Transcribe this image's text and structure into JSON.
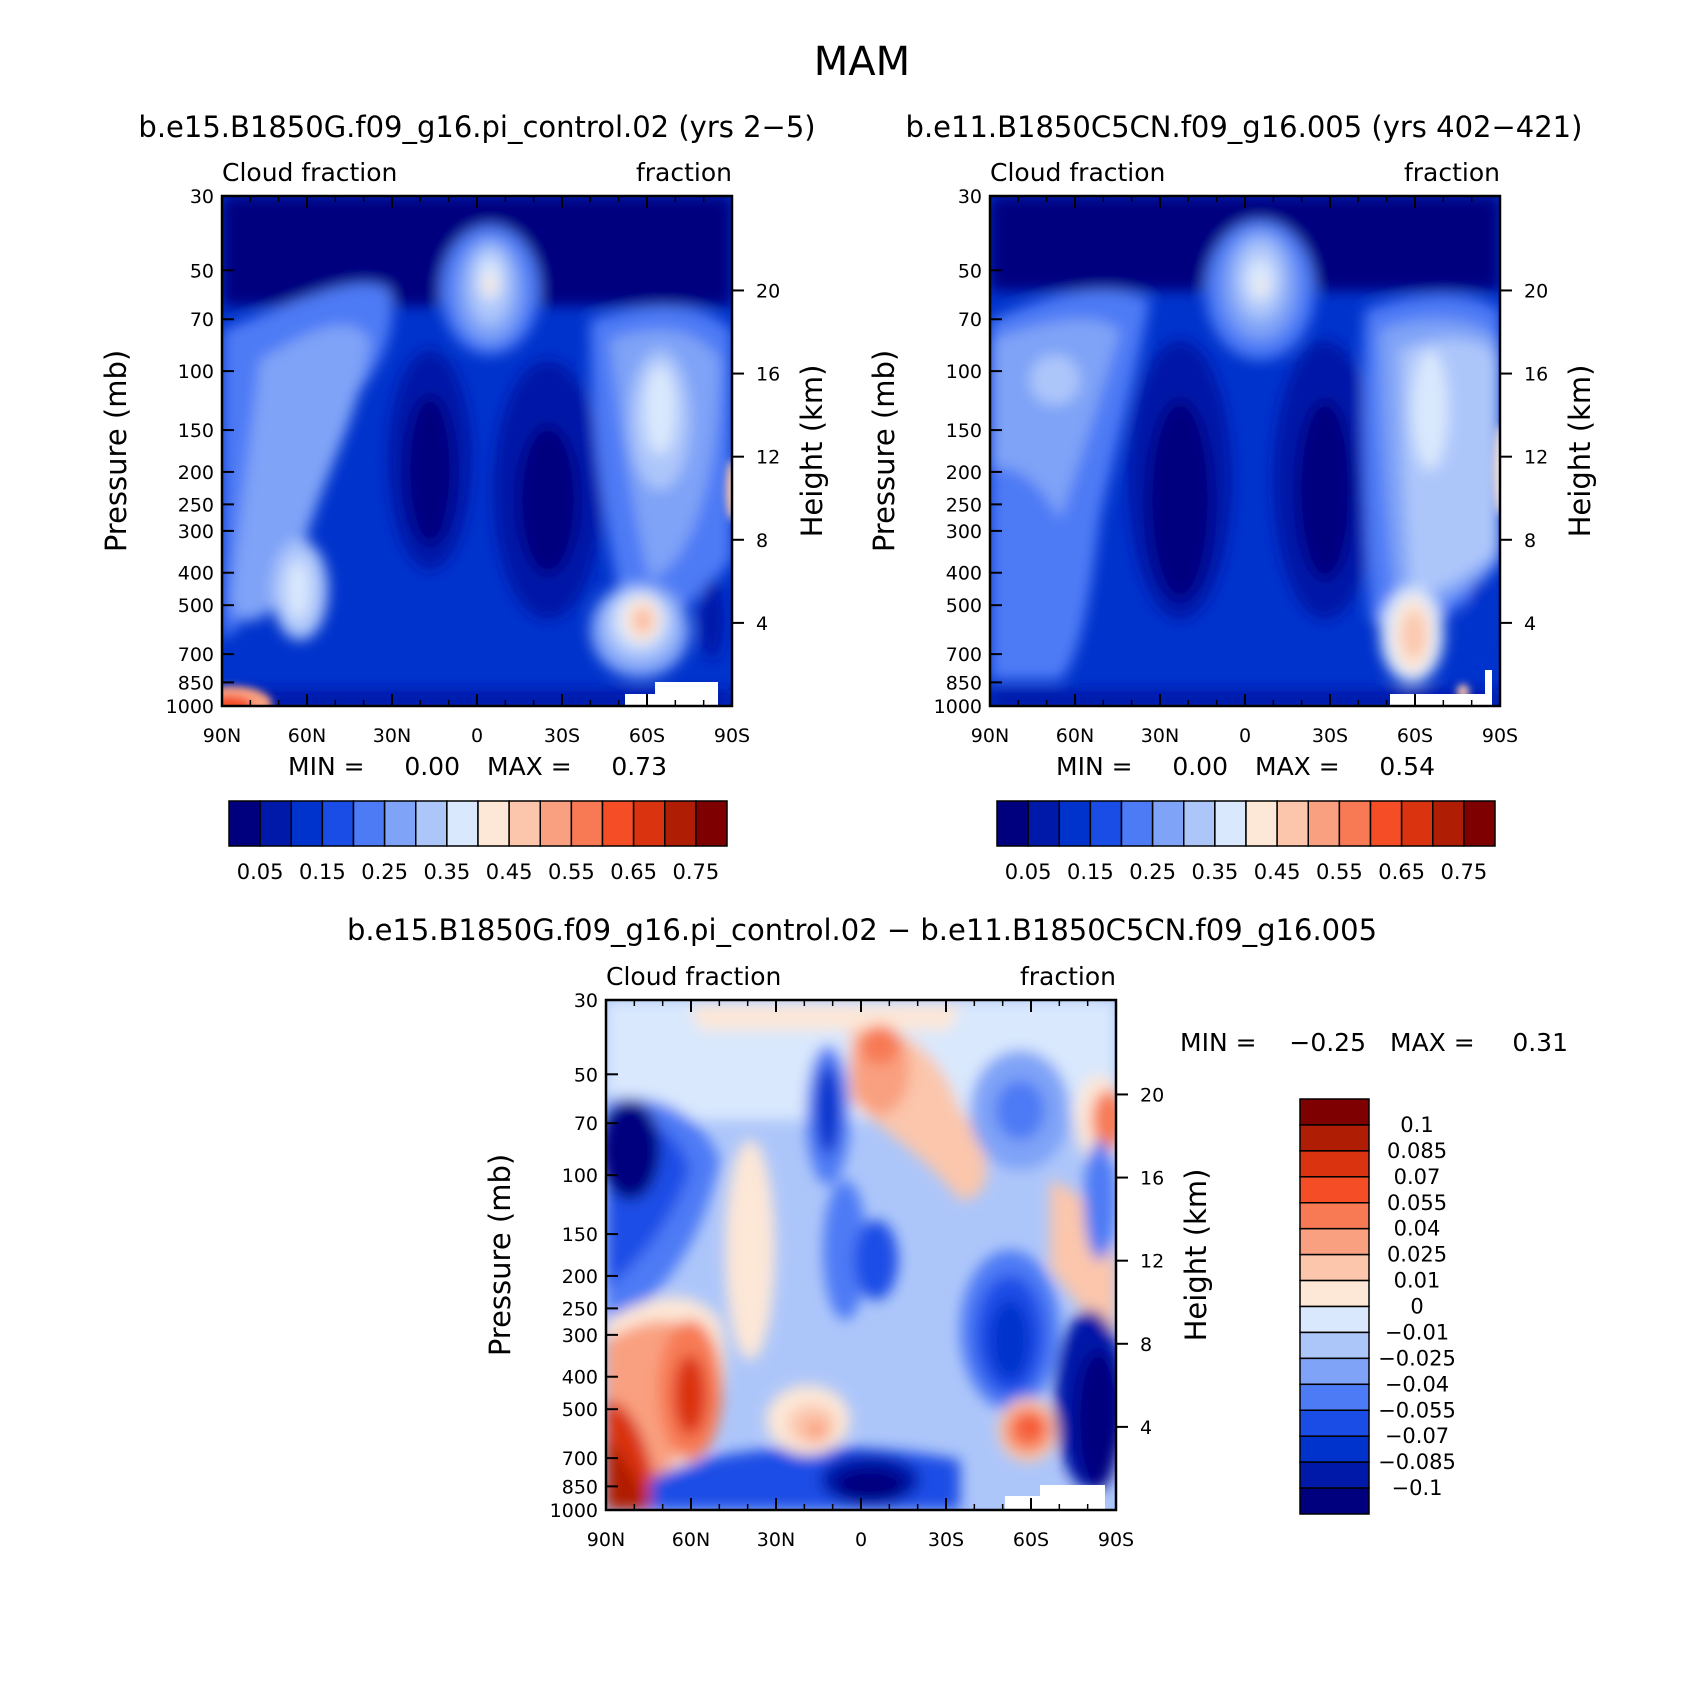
{
  "figure": {
    "title": "MAM",
    "diff_title": "b.e15.B1850G.f09_g16.pi_control.02 − b.e11.B1850C5CN.f09_g16.005"
  },
  "common": {
    "left_label": "Cloud fraction",
    "right_label": "fraction",
    "y_title": "Pressure (mb)",
    "y2_title": "Height (km)",
    "x_ticks": [
      "90N",
      "60N",
      "30N",
      "0",
      "30S",
      "60S",
      "90S"
    ],
    "p_ticks": [
      "30",
      "50",
      "70",
      "100",
      "150",
      "200",
      "250",
      "300",
      "400",
      "500",
      "700",
      "850",
      "1000"
    ],
    "h_ticks": [
      "20",
      "16",
      "12",
      "8",
      "4"
    ],
    "min_label": "MIN =",
    "max_label": "MAX ="
  },
  "colorbars": {
    "main": {
      "colors": [
        "#00007f",
        "#0019a8",
        "#0033cc",
        "#1a4de6",
        "#4d7af5",
        "#7fa3f7",
        "#adc6fa",
        "#d9e8fd",
        "#fde7d7",
        "#fbc6ac",
        "#f9a080",
        "#f77a54",
        "#f54d25",
        "#da3310",
        "#b01d05",
        "#7f0000"
      ],
      "labels": [
        "0.05",
        "0.15",
        "0.25",
        "0.35",
        "0.45",
        "0.55",
        "0.65",
        "0.75"
      ]
    },
    "diff": {
      "colors": [
        "#00007f",
        "#0019a8",
        "#0033cc",
        "#1a4de6",
        "#4d7af5",
        "#7fa3f7",
        "#adc6fa",
        "#d9e8fd",
        "#fde7d7",
        "#fbc6ac",
        "#f9a080",
        "#f77a54",
        "#f54d25",
        "#da3310",
        "#b01d05",
        "#7f0000"
      ],
      "labels": [
        "0.1",
        "0.085",
        "0.07",
        "0.055",
        "0.04",
        "0.025",
        "0.01",
        "0",
        "−0.01",
        "−0.025",
        "−0.04",
        "−0.055",
        "−0.07",
        "−0.085",
        "−0.1"
      ]
    }
  },
  "chart_data": [
    {
      "type": "heatmap",
      "title": "b.e15.B1850G.f09_g16.pi_control.02 (yrs 2−5)",
      "variable": "Cloud fraction",
      "units": "fraction",
      "xlabel": "",
      "ylabel": "Pressure (mb)",
      "y2label": "Height (km)",
      "x_range": [
        "90N",
        "90S"
      ],
      "y_range": [
        30,
        1000
      ],
      "min": "0.00",
      "max": "0.73"
    },
    {
      "type": "heatmap",
      "title": "b.e11.B1850C5CN.f09_g16.005 (yrs 402−421)",
      "variable": "Cloud fraction",
      "units": "fraction",
      "xlabel": "",
      "ylabel": "Pressure (mb)",
      "y2label": "Height (km)",
      "x_range": [
        "90N",
        "90S"
      ],
      "y_range": [
        30,
        1000
      ],
      "min": "0.00",
      "max": "0.54"
    },
    {
      "type": "heatmap",
      "title": "b.e15.B1850G.f09_g16.pi_control.02 − b.e11.B1850C5CN.f09_g16.005",
      "variable": "Cloud fraction",
      "units": "fraction",
      "xlabel": "",
      "ylabel": "Pressure (mb)",
      "y2label": "Height (km)",
      "x_range": [
        "90N",
        "90S"
      ],
      "y_range": [
        30,
        1000
      ],
      "min": "−0.25",
      "max": "0.31"
    }
  ]
}
